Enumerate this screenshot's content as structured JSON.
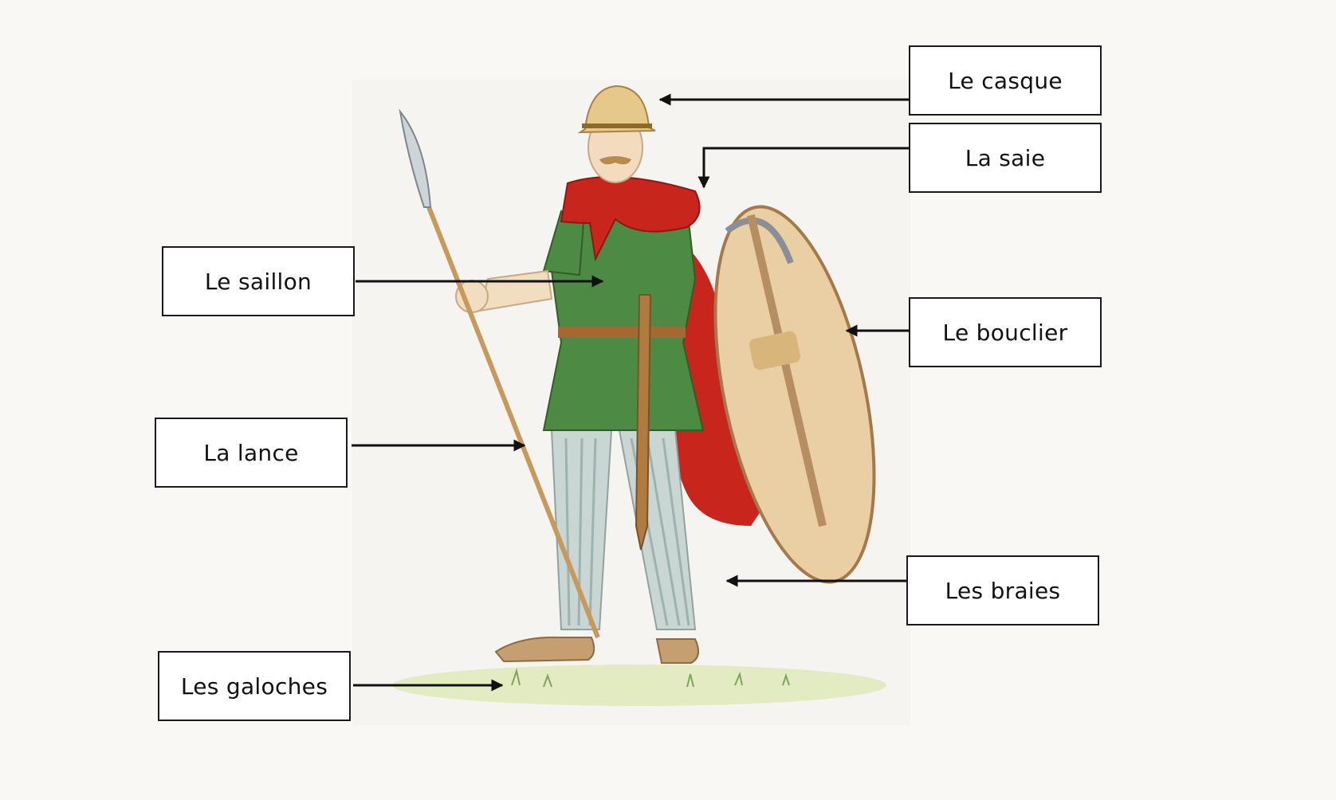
{
  "diagram": {
    "labels": {
      "casque": "Le casque",
      "saie": "La saie",
      "saillon": "Le saillon",
      "bouclier": "Le bouclier",
      "lance": "La lance",
      "braies": "Les braies",
      "galoches": "Les galoches"
    },
    "colors": {
      "tunic": "#4d8a43",
      "cloak": "#c8251c",
      "shield": "#eacfa5",
      "trousers": "#c9d6d3",
      "helmet": "#e6c88a",
      "arrow": "#111111"
    }
  }
}
